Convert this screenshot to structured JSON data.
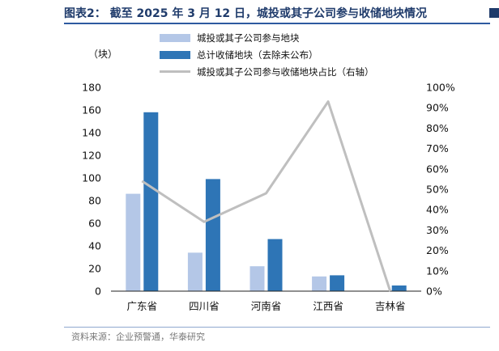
{
  "header": {
    "title": "图表2： 截至 2025 年 3 月 12 日，城投或其子公司参与收储地块情况"
  },
  "unit_label": "（块）",
  "footer": {
    "source": "资料来源：企业预警通，华泰研究"
  },
  "colors": {
    "light_bar": "#b4c7e7",
    "dark_bar": "#2e75b6",
    "share_line": "#bfbfbf",
    "title": "#1f3b6b"
  },
  "chart_data": {
    "type": "bar",
    "categories": [
      "广东省",
      "四川省",
      "河南省",
      "江西省",
      "吉林省"
    ],
    "series": [
      {
        "name": "城投或其子公司参与地块",
        "type": "bar",
        "axis": "left",
        "values": [
          86,
          34,
          22,
          13,
          0
        ]
      },
      {
        "name": "总计收储地块（去除未公布）",
        "type": "bar",
        "axis": "left",
        "values": [
          158,
          99,
          46,
          14,
          5
        ]
      },
      {
        "name": "城投或其子公司参与收储地块占比（右轴）",
        "type": "line",
        "axis": "right",
        "values": [
          54,
          34,
          48,
          93,
          0
        ]
      }
    ],
    "ylim": [
      0,
      180
    ],
    "yticks": [
      "0",
      "20",
      "40",
      "60",
      "80",
      "100",
      "120",
      "140",
      "160",
      "180"
    ],
    "y2lim": [
      0,
      100
    ],
    "y2ticks": [
      "0%",
      "10%",
      "20%",
      "30%",
      "40%",
      "50%",
      "60%",
      "70%",
      "80%",
      "90%",
      "100%"
    ],
    "legend_position": "top"
  }
}
